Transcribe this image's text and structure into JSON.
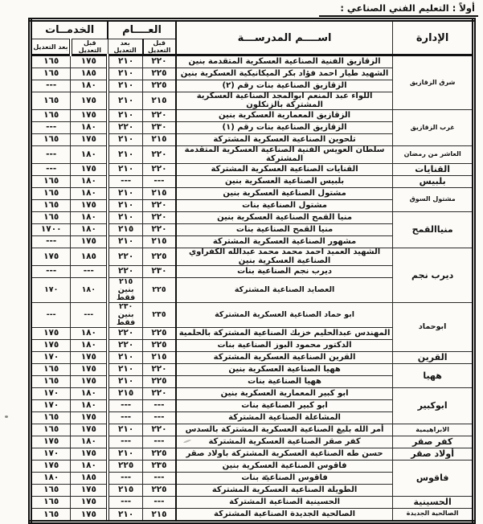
{
  "page_title": "أولاً : التعليم الفني الصناعي :",
  "table": {
    "headers": {
      "admin": "الإدارة",
      "school": "اســــم المدرســـة",
      "general": "العــــام",
      "services": "الخدمــات",
      "before": "قبل التعديل",
      "after": "بعد التعديل"
    },
    "groups": [
      {
        "admin": "شرق الزقازيق",
        "rows": [
          {
            "school": "الزقازيق الفنية الصناعية العسكرية المتقدمة بنين",
            "general_before": "٢٢٠",
            "general_after": "٢١٠",
            "services_before": "١٧٥",
            "services_after": "١٦٥"
          },
          {
            "school": "الشهيد طيار احمد فؤاد بكر الميكانيكية العسكرية بنين",
            "general_before": "٢٢٥",
            "general_after": "٢١٠",
            "services_before": "١٨٥",
            "services_after": "١٦٥"
          },
          {
            "school": "الزقازيق الصناعية بنات رقم (٢)",
            "general_before": "٢٢٥",
            "general_after": "٢١٠",
            "services_before": "١٨٠",
            "services_after": "---"
          },
          {
            "school": "اللواء عبد المنعم ابوالمجد الصناعية العسكرية المشتركة بالزنكلون",
            "general_before": "٢١٥",
            "general_after": "٢١٠",
            "services_before": "١٧٥",
            "services_after": "١٦٥"
          }
        ]
      },
      {
        "admin": "غرب الزقازيق",
        "rows": [
          {
            "school": "الزقازيق المعمارية العسكرية بنين",
            "general_before": "٢٢٠",
            "general_after": "٢١٠",
            "services_before": "١٧٥",
            "services_after": "١٦٥"
          },
          {
            "school": "الزقازيق الصناعية بنات رقم (١)",
            "general_before": "٢٣٠",
            "general_after": "٢٢٠",
            "services_before": "١٨٠",
            "services_after": "---"
          },
          {
            "school": "تلحوين الصناعية العسكرية المشتركة",
            "general_before": "٢١٥",
            "general_after": "٢١٠",
            "services_before": "١٧٥",
            "services_after": "١٦٥"
          }
        ]
      },
      {
        "admin": "العاشر من رمضان",
        "rows": [
          {
            "school": "سلطان العويس الفنية الصناعية العسكرية المتقدمة المشتركة",
            "general_before": "٢٢٠",
            "general_after": "٢١٠",
            "services_before": "١٨٠",
            "services_after": "---"
          }
        ]
      },
      {
        "admin": "القنايات",
        "rows": [
          {
            "school": "القنايات الصناعية العسكرية المشتركة",
            "general_before": "٢٢٠",
            "general_after": "٢١٠",
            "services_before": "١٧٥",
            "services_after": "---"
          }
        ]
      },
      {
        "admin": "بلبيس",
        "rows": [
          {
            "school": "بلبيس الصناعية العسكرية بنين",
            "general_before": "---",
            "general_after": "---",
            "services_before": "١٨٠",
            "services_after": "١٦٥"
          }
        ]
      },
      {
        "admin": "مشتول السوق",
        "rows": [
          {
            "school": "مشتول الصناعية العسكرية بنين",
            "general_before": "٢١٥",
            "general_after": "٢١٠",
            "services_before": "١٨٠",
            "services_after": "١٦٥"
          },
          {
            "school": "مشتول الصناعية بنات",
            "general_before": "٢٢٠",
            "general_after": "٢١٠",
            "services_before": "١٧٥",
            "services_after": "١٦٥"
          }
        ]
      },
      {
        "admin": "منياالقمح",
        "rows": [
          {
            "school": "منيا القمح الصناعية العسكرية بنين",
            "general_before": "٢٢٠",
            "general_after": "٢١٠",
            "services_before": "١٨٠",
            "services_after": "١٦٥"
          },
          {
            "school": "منيا القمح الصناعية بنات",
            "general_before": "٢٢٠",
            "general_after": "٢١٥",
            "services_before": "١٨٠",
            "services_after": "١٧٠٠"
          },
          {
            "school": "مشهور الصناعية العسكرية المشتركة",
            "general_before": "٢١٥",
            "general_after": "٢١٠",
            "services_before": "١٧٥",
            "services_after": "---"
          }
        ]
      },
      {
        "admin": "ديرب نجم",
        "rows": [
          {
            "school": "الشهيد العميد أحمد محمد محمد عبدالله الكفراوي الصناعية العسكرية بنين",
            "general_before": "٢٢٥",
            "general_after": "٢٢٠",
            "services_before": "١٨٥",
            "services_after": "١٧٥"
          },
          {
            "school": "ديرب نجم الصناعية بنات",
            "general_before": "٢٣٠",
            "general_after": "٢٢٠",
            "services_before": "---",
            "services_after": "---"
          },
          {
            "school": "العصايد الصناعية المشتركة",
            "general_before": "٢٢٥",
            "general_after": "٢١٥\nبنين فقط",
            "services_before": "١٨٠",
            "services_after": "١٧٠"
          }
        ]
      },
      {
        "admin": "ابوحماد",
        "rows": [
          {
            "school": "ابو حماد الصناعية العسكرية المشتركة",
            "general_before": "٢٣٥",
            "general_after": "٢٣٠\nبنين فقط",
            "services_before": "---",
            "services_after": "---"
          },
          {
            "school": "المهندس عبدالحليم خزبك الصناعية المشتركة بالحلمية",
            "general_before": "٢٢٥",
            "general_after": "٢٢٠",
            "services_before": "١٨٠",
            "services_after": "١٧٥"
          },
          {
            "school": "الدكتور محمود البوز الصناعية بنات",
            "general_before": "٢٢٥",
            "general_after": "٢٢٠",
            "services_before": "١٨٠",
            "services_after": "١٧٥"
          }
        ]
      },
      {
        "admin": "القرين",
        "rows": [
          {
            "school": "القرين الصناعية العسكرية المشتركة",
            "general_before": "٢١٥",
            "general_after": "٢١٠",
            "services_before": "١٧٥",
            "services_after": "١٧٠"
          }
        ]
      },
      {
        "admin": "ههيا",
        "rows": [
          {
            "school": "ههيا الصناعية العسكرية بنين",
            "general_before": "٢٢٠",
            "general_after": "٢١٠",
            "services_before": "١٧٥",
            "services_after": "١٦٥"
          },
          {
            "school": "ههيا الصناعية بنات",
            "general_before": "٢٢٥",
            "general_after": "٢١٠",
            "services_before": "١٧٥",
            "services_after": "١٦٥"
          }
        ]
      },
      {
        "admin": "ابوكبير",
        "rows": [
          {
            "school": "ابو كبير المعمارية العسكرية بنين",
            "general_before": "٢٢٠",
            "general_after": "٢١٥",
            "services_before": "١٨٠",
            "services_after": "١٧٠"
          },
          {
            "school": "ابو كبير الصناعية بنات",
            "general_before": "---",
            "general_after": "---",
            "services_before": "١٨٠",
            "services_after": "١٧٠"
          },
          {
            "school": "المشاعلة الصناعية المشتركة",
            "general_before": "---",
            "general_after": "---",
            "services_before": "١٧٥",
            "services_after": "١٦٥"
          }
        ]
      },
      {
        "admin": "الابراهيمية",
        "rows": [
          {
            "school": "أمر الله بليغ الصناعية العسكرية المشتركة بالسدس",
            "general_before": "٢٢٠",
            "general_after": "٢١٠",
            "services_before": "١٧٥",
            "services_after": "١٦٥"
          }
        ]
      },
      {
        "admin": "كفر صقر",
        "rows": [
          {
            "school": "كفر صقر الصناعية العسكرية المشتركة",
            "general_before": "---",
            "general_after": "---",
            "services_before": "١٨٠",
            "services_after": "١٧٥"
          }
        ]
      },
      {
        "admin": "أولاد صقر",
        "rows": [
          {
            "school": "حسن طه الصناعية العسكرية المشتركة باولاد صقر",
            "general_before": "٢٢٥",
            "general_after": "٢١٠",
            "services_before": "١٧٥",
            "services_after": "١٧٠"
          }
        ]
      },
      {
        "admin": "فاقوس",
        "rows": [
          {
            "school": "فاقوس الصناعية العسكرية بنين",
            "general_before": "٢٣٥",
            "general_after": "٢٢٥",
            "services_before": "١٨٠",
            "services_after": "١٧٥"
          },
          {
            "school": "فاقوس الصناعية بنات",
            "general_before": "---",
            "general_after": "---",
            "services_before": "١٨٥",
            "services_after": "١٨٠"
          },
          {
            "school": "الطويلة الصناعية العسكرية المشتركة",
            "general_before": "٢٢٥",
            "general_after": "٢١٥",
            "services_before": "١٧٥",
            "services_after": "١٦٥"
          }
        ]
      },
      {
        "admin": "الحسينية",
        "rows": [
          {
            "school": "الحسينية الصناعية المشتركة",
            "general_before": "---",
            "general_after": "---",
            "services_before": "١٧٥",
            "services_after": "١٦٥"
          }
        ]
      },
      {
        "admin": "الصالحية الجديدة",
        "rows": [
          {
            "school": "الصالحية الجديدة الصناعية المشتركة",
            "general_before": "٢١٥",
            "general_after": "٢١٠",
            "services_before": "١٧٥",
            "services_after": "١٦٥"
          }
        ]
      }
    ]
  }
}
